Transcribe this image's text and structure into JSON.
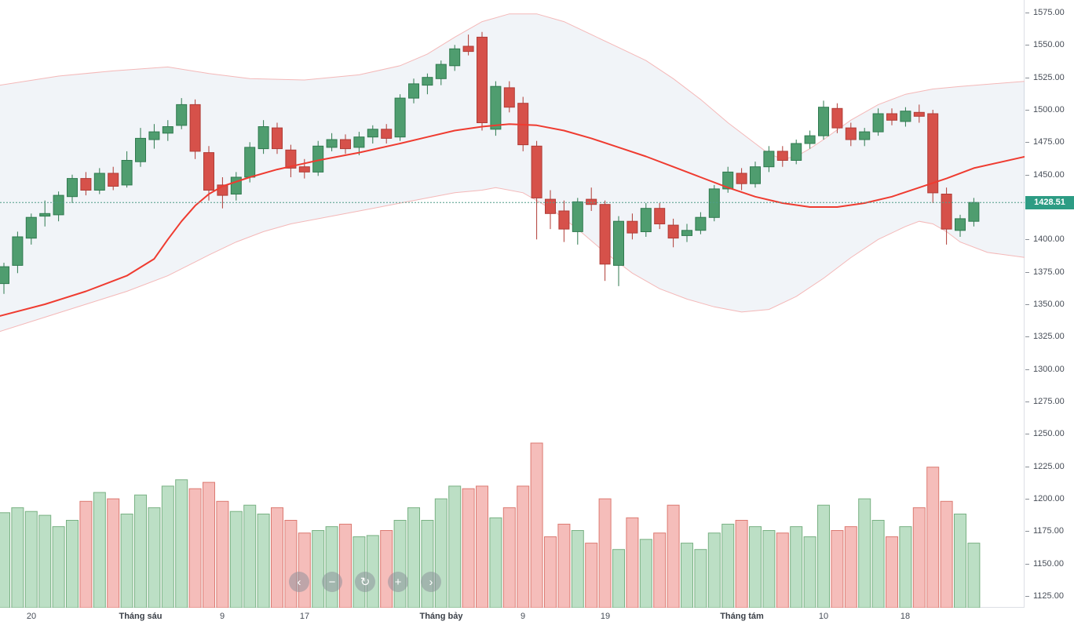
{
  "chart_data": {
    "type": "candlestick",
    "title": "Stock index candlestick chart with Bollinger Bands, SMA overlay and volume (Vietnamese date axis)",
    "last_price": 1428.51,
    "last_price_label": "1428.51",
    "price_axis": {
      "min": 1125,
      "max": 1575,
      "step": 25,
      "tick_labels": [
        "1575.00",
        "1550.00",
        "1525.00",
        "1500.00",
        "1475.00",
        "1450.00",
        "1425.00",
        "1400.00",
        "1375.00",
        "1350.00",
        "1325.00",
        "1300.00",
        "1275.00",
        "1250.00",
        "1225.00",
        "1200.00",
        "1175.00",
        "1150.00",
        "1125.00"
      ]
    },
    "time_axis": {
      "labels": [
        {
          "text": "20",
          "index": 2,
          "bold": false
        },
        {
          "text": "Tháng sáu",
          "index": 10,
          "bold": true
        },
        {
          "text": "9",
          "index": 16,
          "bold": false
        },
        {
          "text": "17",
          "index": 22,
          "bold": false
        },
        {
          "text": "Tháng bảy",
          "index": 32,
          "bold": true
        },
        {
          "text": "9",
          "index": 38,
          "bold": false
        },
        {
          "text": "19",
          "index": 44,
          "bold": false
        },
        {
          "text": "Tháng tám",
          "index": 54,
          "bold": true
        },
        {
          "text": "10",
          "index": 60,
          "bold": false
        },
        {
          "text": "18",
          "index": 66,
          "bold": false
        }
      ]
    },
    "volume_axis": "unlabeled, relative units",
    "volume_max": 260,
    "candles_format": [
      "open",
      "high",
      "low",
      "close",
      "volume"
    ],
    "candles": [
      [
        1366,
        1382,
        1358,
        1379,
        150
      ],
      [
        1380,
        1406,
        1374,
        1402,
        158
      ],
      [
        1401,
        1420,
        1396,
        1417,
        152
      ],
      [
        1418,
        1430,
        1410,
        1420,
        146
      ],
      [
        1419,
        1437,
        1414,
        1434,
        128
      ],
      [
        1433,
        1450,
        1428,
        1447,
        138
      ],
      [
        1447,
        1452,
        1434,
        1438,
        168
      ],
      [
        1438,
        1455,
        1435,
        1451,
        182
      ],
      [
        1451,
        1456,
        1438,
        1441,
        172
      ],
      [
        1442,
        1468,
        1440,
        1461,
        148
      ],
      [
        1460,
        1486,
        1456,
        1478,
        178
      ],
      [
        1477,
        1489,
        1470,
        1483,
        158
      ],
      [
        1482,
        1492,
        1476,
        1487,
        192
      ],
      [
        1488,
        1509,
        1485,
        1504,
        202
      ],
      [
        1504,
        1508,
        1462,
        1468,
        188
      ],
      [
        1467,
        1472,
        1430,
        1438,
        198
      ],
      [
        1442,
        1448,
        1424,
        1434,
        168
      ],
      [
        1435,
        1452,
        1430,
        1448,
        152
      ],
      [
        1448,
        1475,
        1444,
        1471,
        162
      ],
      [
        1470,
        1492,
        1466,
        1487,
        148
      ],
      [
        1486,
        1490,
        1466,
        1470,
        158
      ],
      [
        1469,
        1473,
        1448,
        1455,
        138
      ],
      [
        1456,
        1462,
        1447,
        1452,
        118
      ],
      [
        1452,
        1476,
        1449,
        1472,
        122
      ],
      [
        1471,
        1482,
        1468,
        1477,
        128
      ],
      [
        1477,
        1481,
        1466,
        1470,
        132
      ],
      [
        1471,
        1483,
        1465,
        1479,
        112
      ],
      [
        1479,
        1488,
        1474,
        1485,
        114
      ],
      [
        1485,
        1489,
        1474,
        1478,
        122
      ],
      [
        1479,
        1512,
        1476,
        1509,
        138
      ],
      [
        1509,
        1524,
        1505,
        1520,
        158
      ],
      [
        1519,
        1528,
        1512,
        1525,
        138
      ],
      [
        1524,
        1538,
        1519,
        1535,
        172
      ],
      [
        1534,
        1550,
        1530,
        1547,
        192
      ],
      [
        1549,
        1558,
        1542,
        1545,
        188
      ],
      [
        1556,
        1560,
        1484,
        1490,
        192
      ],
      [
        1485,
        1522,
        1480,
        1518,
        142
      ],
      [
        1517,
        1522,
        1498,
        1502,
        158
      ],
      [
        1505,
        1510,
        1468,
        1473,
        192
      ],
      [
        1472,
        1476,
        1400,
        1432,
        260
      ],
      [
        1431,
        1438,
        1408,
        1420,
        112
      ],
      [
        1422,
        1430,
        1398,
        1408,
        132
      ],
      [
        1406,
        1432,
        1396,
        1429,
        122
      ],
      [
        1431,
        1440,
        1422,
        1427,
        102
      ],
      [
        1427,
        1430,
        1368,
        1381,
        172
      ],
      [
        1380,
        1418,
        1364,
        1414,
        92
      ],
      [
        1414,
        1420,
        1400,
        1405,
        142
      ],
      [
        1406,
        1428,
        1402,
        1424,
        108
      ],
      [
        1424,
        1428,
        1408,
        1412,
        118
      ],
      [
        1411,
        1416,
        1394,
        1401,
        162
      ],
      [
        1403,
        1412,
        1398,
        1407,
        102
      ],
      [
        1407,
        1421,
        1404,
        1417,
        92
      ],
      [
        1417,
        1442,
        1414,
        1439,
        118
      ],
      [
        1439,
        1456,
        1436,
        1452,
        132
      ],
      [
        1451,
        1455,
        1438,
        1443,
        138
      ],
      [
        1443,
        1460,
        1440,
        1456,
        128
      ],
      [
        1456,
        1472,
        1452,
        1468,
        122
      ],
      [
        1468,
        1472,
        1456,
        1461,
        118
      ],
      [
        1461,
        1477,
        1458,
        1474,
        128
      ],
      [
        1474,
        1484,
        1470,
        1480,
        112
      ],
      [
        1480,
        1507,
        1477,
        1502,
        162
      ],
      [
        1501,
        1505,
        1482,
        1486,
        122
      ],
      [
        1486,
        1490,
        1472,
        1477,
        128
      ],
      [
        1477,
        1486,
        1472,
        1483,
        172
      ],
      [
        1483,
        1501,
        1480,
        1497,
        138
      ],
      [
        1497,
        1501,
        1488,
        1492,
        112
      ],
      [
        1491,
        1502,
        1487,
        1499,
        128
      ],
      [
        1498,
        1504,
        1490,
        1495,
        158
      ],
      [
        1497,
        1500,
        1428,
        1436,
        222
      ],
      [
        1435,
        1440,
        1396,
        1408,
        168
      ],
      [
        1407,
        1419,
        1402,
        1416,
        148
      ],
      [
        1414,
        1432,
        1410,
        1428.51,
        102
      ]
    ],
    "overlays": {
      "sma": {
        "name": "moving-average-line",
        "points": [
          [
            -0.3,
            1341
          ],
          [
            3,
            1350
          ],
          [
            6,
            1360
          ],
          [
            9,
            1372
          ],
          [
            11,
            1385
          ],
          [
            12,
            1400
          ],
          [
            13,
            1414
          ],
          [
            14,
            1426
          ],
          [
            15,
            1435
          ],
          [
            16,
            1441
          ],
          [
            18,
            1448
          ],
          [
            20,
            1454
          ],
          [
            23,
            1461
          ],
          [
            26,
            1467
          ],
          [
            29,
            1474
          ],
          [
            31,
            1479
          ],
          [
            33,
            1484
          ],
          [
            35,
            1487
          ],
          [
            37,
            1489
          ],
          [
            39,
            1488
          ],
          [
            41,
            1484
          ],
          [
            43,
            1478
          ],
          [
            45,
            1471
          ],
          [
            47,
            1464
          ],
          [
            49,
            1456
          ],
          [
            51,
            1448
          ],
          [
            53,
            1440
          ],
          [
            55,
            1433
          ],
          [
            57,
            1428
          ],
          [
            59,
            1425
          ],
          [
            61,
            1425
          ],
          [
            63,
            1428
          ],
          [
            65,
            1433
          ],
          [
            67,
            1440
          ],
          [
            69,
            1447
          ],
          [
            71,
            1455
          ],
          [
            74.8,
            1464
          ]
        ]
      },
      "bollinger_upper": {
        "name": "bollinger-upper-band",
        "points": [
          [
            -0.3,
            1519
          ],
          [
            4,
            1526
          ],
          [
            8,
            1530
          ],
          [
            12,
            1533
          ],
          [
            15,
            1528
          ],
          [
            18,
            1524
          ],
          [
            22,
            1523
          ],
          [
            26,
            1527
          ],
          [
            29,
            1534
          ],
          [
            31,
            1543
          ],
          [
            33,
            1556
          ],
          [
            35,
            1568
          ],
          [
            37,
            1574
          ],
          [
            39,
            1574
          ],
          [
            41,
            1568
          ],
          [
            43,
            1558
          ],
          [
            45,
            1548
          ],
          [
            47,
            1538
          ],
          [
            49,
            1524
          ],
          [
            51,
            1508
          ],
          [
            53,
            1490
          ],
          [
            55,
            1474
          ],
          [
            56,
            1466
          ],
          [
            57,
            1462
          ],
          [
            58,
            1464
          ],
          [
            59,
            1470
          ],
          [
            60,
            1477
          ],
          [
            62,
            1492
          ],
          [
            64,
            1504
          ],
          [
            66,
            1512
          ],
          [
            68,
            1516
          ],
          [
            70,
            1518
          ],
          [
            74.8,
            1522
          ]
        ]
      },
      "bollinger_lower": {
        "name": "bollinger-lower-band",
        "points": [
          [
            -0.3,
            1329
          ],
          [
            3,
            1340
          ],
          [
            6,
            1350
          ],
          [
            9,
            1360
          ],
          [
            12,
            1372
          ],
          [
            15,
            1388
          ],
          [
            17,
            1398
          ],
          [
            19,
            1406
          ],
          [
            21,
            1412
          ],
          [
            24,
            1418
          ],
          [
            27,
            1424
          ],
          [
            29,
            1428
          ],
          [
            31,
            1432
          ],
          [
            33,
            1436
          ],
          [
            35,
            1438
          ],
          [
            36,
            1440
          ],
          [
            38,
            1436
          ],
          [
            40,
            1424
          ],
          [
            42,
            1408
          ],
          [
            44,
            1390
          ],
          [
            46,
            1374
          ],
          [
            48,
            1362
          ],
          [
            50,
            1354
          ],
          [
            52,
            1348
          ],
          [
            54,
            1344
          ],
          [
            56,
            1346
          ],
          [
            58,
            1356
          ],
          [
            60,
            1370
          ],
          [
            62,
            1386
          ],
          [
            64,
            1400
          ],
          [
            66,
            1410
          ],
          [
            67,
            1414
          ],
          [
            68,
            1412
          ],
          [
            69,
            1406
          ],
          [
            70,
            1398
          ],
          [
            72,
            1390
          ],
          [
            74.8,
            1386
          ]
        ]
      }
    },
    "colors": {
      "up_body": "#4f9d6f",
      "up_border": "#2f7a4f",
      "down_body": "#d6514a",
      "down_border": "#b03c36",
      "volume_up_fill": "#bcdfc5",
      "volume_up_border": "#79b183",
      "volume_down_fill": "#f5bdba",
      "volume_down_border": "#dc7a72",
      "sma_line": "#ef3b30",
      "band_line": "#f4b8b8",
      "band_fill": "rgba(150,170,200,0.13)",
      "last_price_bg": "#2d9c84",
      "last_price_line": "#4f9c88",
      "axis_text": "#474d57"
    },
    "layout_hints": {
      "grid": false,
      "legend": false,
      "price_axis_position": "right",
      "volume_pane": "overlaid bottom of price pane"
    }
  },
  "toolbar": {
    "buttons": [
      {
        "name": "pan-left-button",
        "icon": "chevron-left-icon",
        "glyph": "‹"
      },
      {
        "name": "zoom-out-button",
        "icon": "minus-icon",
        "glyph": "−"
      },
      {
        "name": "reset-chart-button",
        "icon": "refresh-icon",
        "glyph": "↻"
      },
      {
        "name": "zoom-in-button",
        "icon": "plus-icon",
        "glyph": "+"
      },
      {
        "name": "pan-right-button",
        "icon": "chevron-right-icon",
        "glyph": "›"
      }
    ]
  }
}
